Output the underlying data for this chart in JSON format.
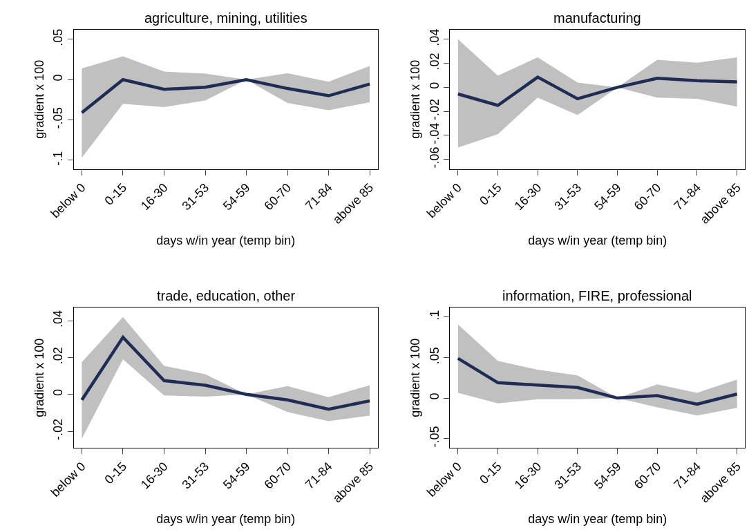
{
  "chart_data": [
    {
      "type": "line",
      "title": "agriculture, mining, utilities",
      "xlabel": "days w/in year (temp bin)",
      "ylabel": "gradient x 100",
      "categories": [
        "below 0",
        "0-15",
        "16-30",
        "31-53",
        "54-59",
        "60-70",
        "71-84",
        "above 85"
      ],
      "ylim": [
        -0.111,
        0.062
      ],
      "yticks": [
        {
          "value": -0.1,
          "label": "-.1"
        },
        {
          "value": -0.05,
          "label": "-.05"
        },
        0,
        {
          "value": 0.05,
          "label": ".05"
        }
      ],
      "series": [
        {
          "color": "#1f2d54",
          "values": [
            -0.041,
            0,
            -0.012,
            -0.0095,
            0,
            -0.011,
            -0.02,
            -0.0055
          ],
          "upper": [
            0.014,
            0.029,
            0.01,
            0.0075,
            0,
            0.008,
            -0.0025,
            0.017
          ],
          "lower": [
            -0.097,
            -0.03,
            -0.034,
            -0.026,
            0,
            -0.029,
            -0.038,
            -0.028
          ]
        }
      ]
    },
    {
      "type": "line",
      "title": "manufacturing",
      "xlabel": "days w/in year (temp bin)",
      "ylabel": "gradient x 100",
      "categories": [
        "below 0",
        "0-15",
        "16-30",
        "31-53",
        "54-59",
        "60-70",
        "71-84",
        "above 85"
      ],
      "ylim": [
        -0.068,
        0.048
      ],
      "yticks": [
        {
          "value": -0.06,
          "label": "-.06"
        },
        {
          "value": -0.04,
          "label": "-.04"
        },
        {
          "value": -0.02,
          "label": "-.02"
        },
        0,
        {
          "value": 0.02,
          "label": ".02"
        },
        {
          "value": 0.04,
          "label": ".04"
        }
      ],
      "series": [
        {
          "color": "#1f2d54",
          "values": [
            -0.0055,
            -0.015,
            0.0085,
            -0.0095,
            0,
            0.0075,
            0.0055,
            0.0045
          ],
          "upper": [
            0.04,
            0.0098,
            0.025,
            0.004,
            0,
            0.023,
            0.0205,
            0.025
          ],
          "lower": [
            -0.05,
            -0.039,
            -0.0085,
            -0.023,
            0,
            -0.0085,
            -0.0095,
            -0.016
          ]
        }
      ]
    },
    {
      "type": "line",
      "title": "trade, education, other",
      "xlabel": "days w/in year (temp bin)",
      "ylabel": "gradient x 100",
      "categories": [
        "below 0",
        "0-15",
        "16-30",
        "31-53",
        "54-59",
        "60-70",
        "71-84",
        "above 85"
      ],
      "ylim": [
        -0.029,
        0.047
      ],
      "yticks": [
        {
          "value": -0.02,
          "label": "-.02"
        },
        0,
        {
          "value": 0.02,
          "label": ".02"
        },
        {
          "value": 0.04,
          "label": ".04"
        }
      ],
      "series": [
        {
          "color": "#1f2d54",
          "values": [
            -0.003,
            0.031,
            0.0075,
            0.005,
            0,
            -0.003,
            -0.008,
            -0.0035
          ],
          "upper": [
            0.0175,
            0.042,
            0.0155,
            0.011,
            0,
            0.0045,
            -0.0015,
            0.005
          ],
          "lower": [
            -0.024,
            0.019,
            -0.0005,
            -0.0012,
            0,
            -0.0095,
            -0.0145,
            -0.0115
          ]
        }
      ]
    },
    {
      "type": "line",
      "title": "information, FIRE, professional",
      "xlabel": "days w/in year (temp bin)",
      "ylabel": "gradient x 100",
      "categories": [
        "below 0",
        "0-15",
        "16-30",
        "31-53",
        "54-59",
        "60-70",
        "71-84",
        "above 85"
      ],
      "ylim": [
        -0.0615,
        0.1115
      ],
      "yticks": [
        {
          "value": -0.05,
          "label": "-.05"
        },
        0,
        {
          "value": 0.05,
          "label": ".05"
        },
        {
          "value": 0.1,
          "label": ".1"
        }
      ],
      "series": [
        {
          "color": "#1f2d54",
          "values": [
            0.049,
            0.019,
            0.016,
            0.013,
            0,
            0.003,
            -0.0075,
            0.005
          ],
          "upper": [
            0.091,
            0.046,
            0.035,
            0.028,
            0,
            0.017,
            0.0065,
            0.023
          ],
          "lower": [
            0.0065,
            -0.0065,
            -0.0015,
            -0.0015,
            0,
            -0.0115,
            -0.0215,
            -0.012
          ]
        }
      ]
    }
  ]
}
